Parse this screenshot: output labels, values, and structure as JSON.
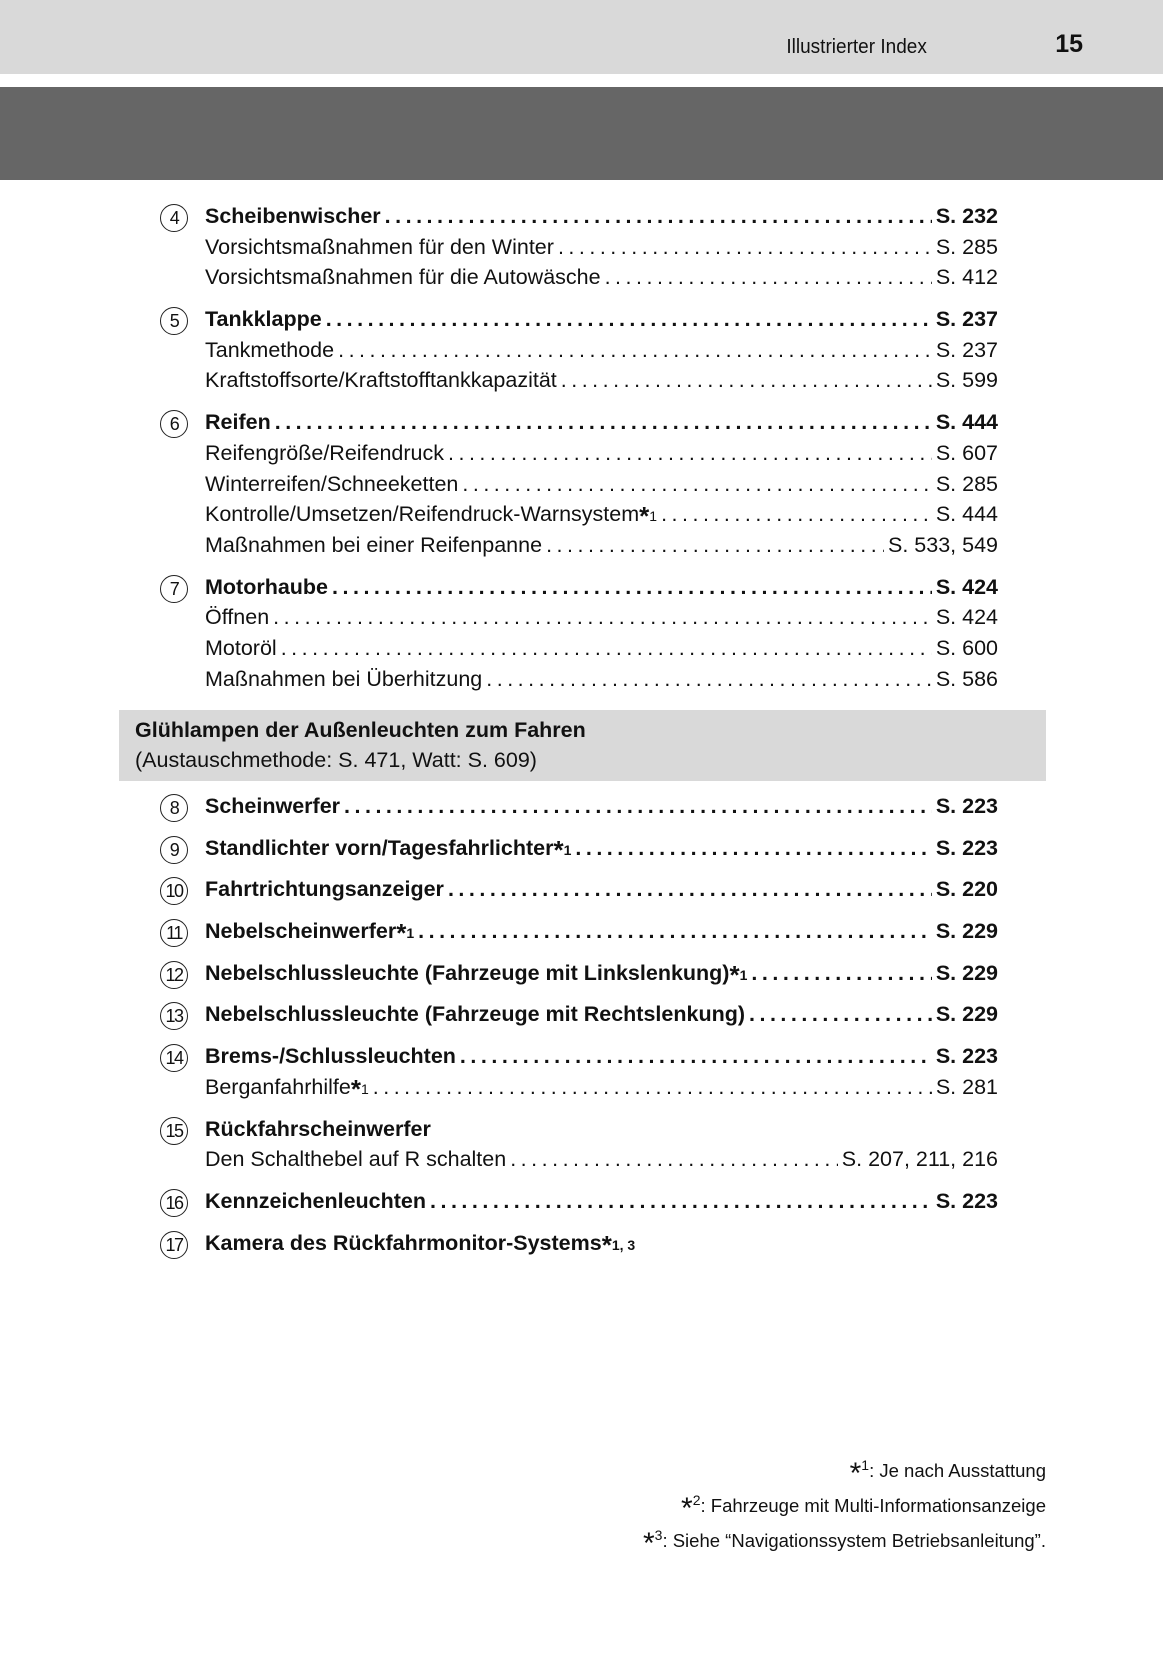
{
  "header": {
    "section_title": "Illustrierter Index",
    "page_number": "15"
  },
  "groups_top": [
    {
      "rows": [
        {
          "num": "4",
          "label": "Scheibenwischer",
          "page": "S. 232",
          "bold": true
        },
        {
          "label": "Vorsichtsmaßnahmen für den Winter",
          "page": "S. 285"
        },
        {
          "label": "Vorsichtsmaßnahmen für die Autowäsche",
          "page": "S. 412"
        }
      ]
    },
    {
      "rows": [
        {
          "num": "5",
          "label": "Tankklappe",
          "page": "S. 237",
          "bold": true
        },
        {
          "label": "Tankmethode",
          "page": "S. 237"
        },
        {
          "label": "Kraftstoffsorte/Kraftstofftankkapazität",
          "page": "S. 599"
        }
      ]
    },
    {
      "rows": [
        {
          "num": "6",
          "label": "Reifen",
          "page": "S. 444",
          "bold": true
        },
        {
          "label": "Reifengröße/Reifendruck",
          "page": "S. 607"
        },
        {
          "label": "Winterreifen/Schneeketten",
          "page": "S. 285"
        },
        {
          "label": "Kontrolle/Umsetzen/Reifendruck-Warnsystem",
          "sup": "1",
          "page": "S. 444"
        },
        {
          "label": "Maßnahmen bei einer Reifenpanne",
          "page": "S. 533, 549"
        }
      ]
    },
    {
      "rows": [
        {
          "num": "7",
          "label": "Motorhaube",
          "page": "S. 424",
          "bold": true
        },
        {
          "label": "Öffnen",
          "page": "S. 424"
        },
        {
          "label": "Motoröl",
          "page": "S. 600"
        },
        {
          "label": "Maßnahmen bei Überhitzung",
          "page": "S. 586"
        }
      ]
    }
  ],
  "section_box": {
    "title": "Glühlampen der Außenleuchten zum Fahren",
    "subtitle": "(Austauschmethode: S. 471, Watt: S. 609)"
  },
  "groups_bottom": [
    {
      "rows": [
        {
          "num": "8",
          "label": "Scheinwerfer",
          "page": "S. 223",
          "bold": true
        }
      ]
    },
    {
      "rows": [
        {
          "num": "9",
          "label": "Standlichter vorn/Tagesfahrlichter",
          "sup": "1",
          "page": "S. 223",
          "bold": true
        }
      ]
    },
    {
      "rows": [
        {
          "num": "10",
          "label": "Fahrtrichtungsanzeiger",
          "page": "S. 220",
          "bold": true
        }
      ]
    },
    {
      "rows": [
        {
          "num": "11",
          "label": "Nebelscheinwerfer",
          "sup": "1",
          "page": "S. 229",
          "bold": true
        }
      ]
    },
    {
      "rows": [
        {
          "num": "12",
          "label": "Nebelschlussleuchte (Fahrzeuge mit Linkslenkung)",
          "sup": "1",
          "page": "S. 229",
          "bold": true
        }
      ]
    },
    {
      "rows": [
        {
          "num": "13",
          "label": "Nebelschlussleuchte (Fahrzeuge mit Rechtslenkung)",
          "page": "S. 229",
          "bold": true
        }
      ]
    },
    {
      "rows": [
        {
          "num": "14",
          "label": "Brems-/Schlussleuchten",
          "page": "S. 223",
          "bold": true
        },
        {
          "label": "Berganfahrhilfe",
          "sup": "1",
          "page": "S. 281"
        }
      ]
    },
    {
      "rows": [
        {
          "num": "15",
          "label": "Rückfahrscheinwerfer",
          "bold": true,
          "nodots": true
        },
        {
          "label": "Den Schalthebel auf R schalten",
          "page": "S. 207, 211, 216"
        }
      ]
    },
    {
      "rows": [
        {
          "num": "16",
          "label": "Kennzeichenleuchten",
          "page": "S. 223",
          "bold": true
        }
      ]
    },
    {
      "rows": [
        {
          "num": "17",
          "label": "Kamera des Rückfahrmonitor-Systems",
          "sup": "1, 3",
          "bold": true,
          "nodots": true
        }
      ]
    }
  ],
  "footnotes": [
    {
      "mark": "1",
      "text": ": Je nach Ausstattung"
    },
    {
      "mark": "2",
      "text": ": Fahrzeuge mit Multi-Informationsanzeige"
    },
    {
      "mark": "3",
      "text": ": Siehe “Navigationssystem Betriebsanleitung”."
    }
  ],
  "colors": {
    "header_band": "#d9d9d9",
    "dark_band": "#666666",
    "section_box": "#d9d9d9"
  }
}
